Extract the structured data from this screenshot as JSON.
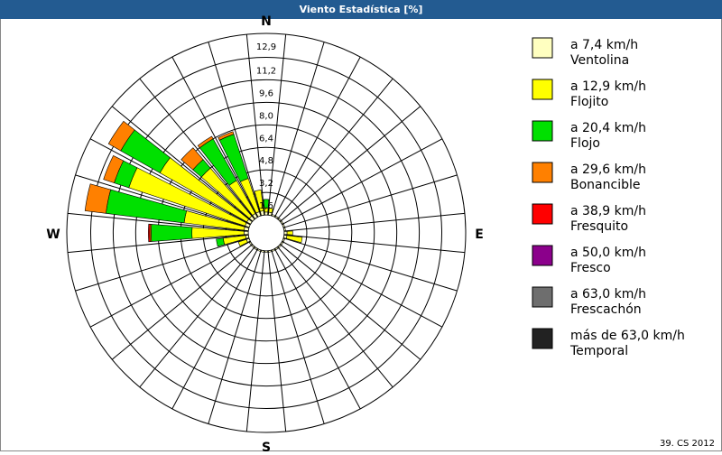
{
  "chart_data": {
    "type": "windrose",
    "title": "Viento Estadística [%]",
    "footer": "39. CS 2012",
    "categories": [
      "N",
      null,
      null,
      null,
      null,
      null,
      null,
      null,
      "E",
      null,
      null,
      null,
      null,
      null,
      null,
      null,
      "S",
      null,
      null,
      null,
      null,
      null,
      null,
      null,
      "W",
      null,
      null,
      null,
      null,
      null,
      null,
      null
    ],
    "rlim": [
      0,
      12.9
    ],
    "rticks": [
      {
        "value": 1.6,
        "label": "1,6"
      },
      {
        "value": 3.2,
        "label": "3,2"
      },
      {
        "value": 4.8,
        "label": "4,8"
      },
      {
        "value": 6.4,
        "label": "6,4"
      },
      {
        "value": 8.0,
        "label": "8,0"
      },
      {
        "value": 9.6,
        "label": "9,6"
      },
      {
        "value": 11.2,
        "label": "11,2"
      },
      {
        "value": 12.9,
        "label": "12,9"
      }
    ],
    "series": [
      {
        "name": "Ventolina",
        "range": "a 7,4 km/h",
        "color": "#ffffc0",
        "values": [
          0.2,
          0.2,
          0.1,
          0.1,
          0.1,
          0.1,
          0.1,
          0.1,
          0.2,
          0.2,
          0.1,
          0.1,
          0.1,
          0.1,
          0.1,
          0.1,
          0.1,
          0.1,
          0.1,
          0.1,
          0.1,
          0.1,
          0.2,
          0.2,
          0.3,
          0.3,
          0.3,
          0.3,
          0.3,
          0.3,
          0.3,
          0.3
        ]
      },
      {
        "name": "Flojito",
        "range": "a 12,9 km/h",
        "color": "#ffff00",
        "values": [
          0.3,
          0.3,
          0,
          0,
          0,
          0,
          0,
          0,
          0.4,
          1.1,
          0,
          0,
          0,
          0,
          0,
          0,
          0,
          0,
          0,
          0,
          0,
          0,
          0.6,
          1.6,
          3.7,
          4.3,
          8.7,
          7.1,
          4.5,
          2.7,
          2.5,
          1.5
        ]
      },
      {
        "name": "Flojo",
        "range": "a 20,4 km/h",
        "color": "#00e000",
        "values": [
          0.6,
          0,
          0,
          0,
          0,
          0,
          0,
          0,
          0,
          0,
          0,
          0,
          0,
          0,
          0,
          0,
          0,
          0,
          0,
          0,
          0,
          0,
          0,
          0.5,
          2.9,
          5.6,
          1.1,
          3.2,
          0.8,
          3.4,
          3.3,
          0
        ]
      },
      {
        "name": "Bonancible",
        "range": "a 29,6 km/h",
        "color": "#ff8000",
        "values": [
          0,
          0,
          0,
          0,
          0,
          0,
          0,
          0,
          0,
          0,
          0,
          0,
          0,
          0,
          0,
          0,
          0,
          0,
          0,
          0,
          0,
          0,
          0,
          0,
          0.1,
          1.5,
          0.8,
          1.0,
          1.1,
          0.2,
          0.2,
          0
        ]
      },
      {
        "name": "Fresquito",
        "range": "a 38,9 km/h",
        "color": "#ff0000",
        "values": [
          0,
          0,
          0,
          0,
          0,
          0,
          0,
          0,
          0,
          0,
          0,
          0,
          0,
          0,
          0,
          0,
          0,
          0,
          0,
          0,
          0,
          0,
          0,
          0,
          0.1,
          0,
          0,
          0,
          0,
          0,
          0,
          0
        ]
      },
      {
        "name": "Fresco",
        "range": "a 50,0 km/h",
        "color": "#8b008b",
        "values": [
          0,
          0,
          0,
          0,
          0,
          0,
          0,
          0,
          0,
          0,
          0,
          0,
          0,
          0,
          0,
          0,
          0,
          0,
          0,
          0,
          0,
          0,
          0,
          0,
          0,
          0,
          0,
          0,
          0,
          0,
          0,
          0
        ]
      },
      {
        "name": "Frescachón",
        "range": "a 63,0 km/h",
        "color": "#6e6e6e",
        "values": [
          0,
          0,
          0,
          0,
          0,
          0,
          0,
          0,
          0,
          0,
          0,
          0,
          0,
          0,
          0,
          0,
          0,
          0,
          0,
          0,
          0,
          0,
          0,
          0,
          0,
          0,
          0,
          0,
          0,
          0,
          0,
          0
        ]
      },
      {
        "name": "Temporal",
        "range": "más de 63,0 km/h",
        "color": "#222222",
        "values": [
          0,
          0,
          0,
          0,
          0,
          0,
          0,
          0,
          0,
          0,
          0,
          0,
          0,
          0,
          0,
          0,
          0,
          0,
          0,
          0,
          0,
          0,
          0,
          0,
          0,
          0,
          0,
          0,
          0,
          0,
          0,
          0
        ]
      }
    ]
  }
}
